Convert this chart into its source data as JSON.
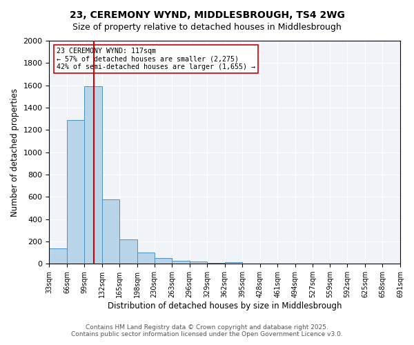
{
  "title_line1": "23, CEREMONY WYND, MIDDLESBROUGH, TS4 2WG",
  "title_line2": "Size of property relative to detached houses in Middlesbrough",
  "xlabel": "Distribution of detached houses by size in Middlesbrough",
  "ylabel": "Number of detached properties",
  "bar_left_edges": [
    33,
    66,
    99,
    132,
    165,
    198,
    230,
    263,
    296,
    329,
    362,
    395,
    428,
    461,
    494,
    527,
    559,
    592,
    625,
    658
  ],
  "bar_heights": [
    140,
    1290,
    1590,
    575,
    215,
    100,
    53,
    25,
    18,
    8,
    15,
    0,
    0,
    0,
    0,
    0,
    0,
    0,
    0,
    0
  ],
  "bin_width": 33,
  "bar_color": "#b8d4e8",
  "bar_edge_color": "#4a90c4",
  "property_size": 117,
  "red_line_color": "#cc0000",
  "annotation_text_line1": "23 CEREMONY WYND: 117sqm",
  "annotation_text_line2": "← 57% of detached houses are smaller (2,275)",
  "annotation_text_line3": "42% of semi-detached houses are larger (1,655) →",
  "annotation_box_color": "#ffffff",
  "annotation_box_edge_color": "#cc0000",
  "ylim": [
    0,
    2000
  ],
  "yticks": [
    0,
    200,
    400,
    600,
    800,
    1000,
    1200,
    1400,
    1600,
    1800,
    2000
  ],
  "x_tick_labels": [
    "33sqm",
    "66sqm",
    "99sqm",
    "132sqm",
    "165sqm",
    "198sqm",
    "230sqm",
    "263sqm",
    "296sqm",
    "329sqm",
    "362sqm",
    "395sqm",
    "428sqm",
    "461sqm",
    "494sqm",
    "527sqm",
    "559sqm",
    "592sqm",
    "625sqm",
    "658sqm",
    "691sqm"
  ],
  "footer_line1": "Contains HM Land Registry data © Crown copyright and database right 2025.",
  "footer_line2": "Contains public sector information licensed under the Open Government Licence v3.0.",
  "background_color": "#f0f4f8",
  "grid_color": "#ffffff",
  "fig_bg_color": "#ffffff"
}
